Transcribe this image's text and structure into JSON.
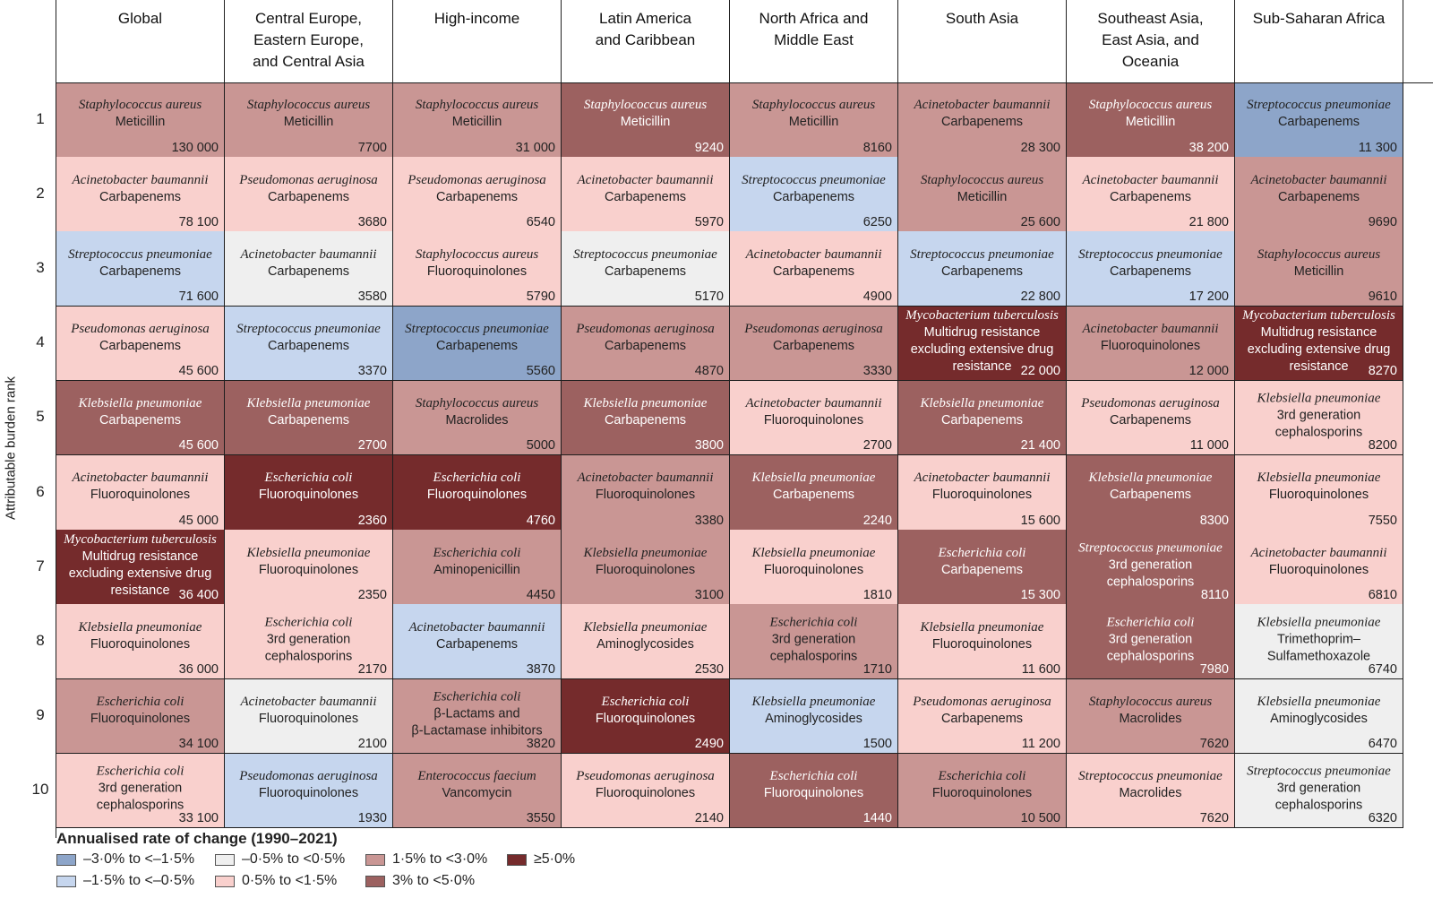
{
  "colors": {
    "c0": "#8da5c9",
    "c1": "#c6d6ee",
    "c2": "#efefef",
    "c3": "#f9d0cd",
    "c4": "#c99694",
    "c5": "#9c6160",
    "c6": "#752b2c"
  },
  "chart_data": {
    "type": "table",
    "ylabel": "Attributable burden rank",
    "columns": [
      "Global",
      "Central Europe, Eastern Europe, and Central Asia",
      "High-income",
      "Latin America and Caribbean",
      "North Africa and Middle East",
      "South Asia",
      "Southeast Asia, East Asia, and Oceania",
      "Sub-Saharan Africa"
    ],
    "column_lines": [
      [
        "Global"
      ],
      [
        "Central Europe,",
        "Eastern Europe,",
        "and Central Asia"
      ],
      [
        "High-income"
      ],
      [
        "Latin America",
        "and Caribbean"
      ],
      [
        "North Africa and",
        "Middle East"
      ],
      [
        "South Asia"
      ],
      [
        "Southeast Asia,",
        "East Asia, and",
        "Oceania"
      ],
      [
        "Sub-Saharan Africa"
      ]
    ],
    "ranks": [
      "1",
      "2",
      "3",
      "4",
      "5",
      "6",
      "7",
      "8",
      "9",
      "10"
    ],
    "legend_title": "Annualised rate of change (1990–2021)",
    "legend": [
      {
        "label": "–3·0% to <–1·5%",
        "cat": 0
      },
      {
        "label": "–1·5% to <–0·5%",
        "cat": 1
      },
      {
        "label": "–0·5% to <0·5%",
        "cat": 2
      },
      {
        "label": "0·5% to <1·5%",
        "cat": 3
      },
      {
        "label": "1·5% to <3·0%",
        "cat": 4
      },
      {
        "label": "3% to <5·0%",
        "cat": 5
      },
      {
        "label": "≥5·0%",
        "cat": 6
      }
    ],
    "rows": [
      [
        {
          "org": "Staphylococcus aureus",
          "drug": [
            "Meticillin"
          ],
          "value": "130 000",
          "cat": 4
        },
        {
          "org": "Staphylococcus aureus",
          "drug": [
            "Meticillin"
          ],
          "value": "7700",
          "cat": 4
        },
        {
          "org": "Staphylococcus aureus",
          "drug": [
            "Meticillin"
          ],
          "value": "31 000",
          "cat": 4
        },
        {
          "org": "Staphylococcus aureus",
          "drug": [
            "Meticillin"
          ],
          "value": "9240",
          "cat": 5
        },
        {
          "org": "Staphylococcus aureus",
          "drug": [
            "Meticillin"
          ],
          "value": "8160",
          "cat": 4
        },
        {
          "org": "Acinetobacter baumannii",
          "drug": [
            "Carbapenems"
          ],
          "value": "28 300",
          "cat": 4
        },
        {
          "org": "Staphylococcus aureus",
          "drug": [
            "Meticillin"
          ],
          "value": "38 200",
          "cat": 5
        },
        {
          "org": "Streptococcus pneumoniae",
          "drug": [
            "Carbapenems"
          ],
          "value": "11 300",
          "cat": 0
        }
      ],
      [
        {
          "org": "Acinetobacter baumannii",
          "drug": [
            "Carbapenems"
          ],
          "value": "78 100",
          "cat": 3
        },
        {
          "org": "Pseudomonas aeruginosa",
          "drug": [
            "Carbapenems"
          ],
          "value": "3680",
          "cat": 3
        },
        {
          "org": "Pseudomonas aeruginosa",
          "drug": [
            "Carbapenems"
          ],
          "value": "6540",
          "cat": 3
        },
        {
          "org": "Acinetobacter baumannii",
          "drug": [
            "Carbapenems"
          ],
          "value": "5970",
          "cat": 3
        },
        {
          "org": "Streptococcus pneumoniae",
          "drug": [
            "Carbapenems"
          ],
          "value": "6250",
          "cat": 1
        },
        {
          "org": "Staphylococcus aureus",
          "drug": [
            "Meticillin"
          ],
          "value": "25 600",
          "cat": 4
        },
        {
          "org": "Acinetobacter baumannii",
          "drug": [
            "Carbapenems"
          ],
          "value": "21 800",
          "cat": 3
        },
        {
          "org": "Acinetobacter baumannii",
          "drug": [
            "Carbapenems"
          ],
          "value": "9690",
          "cat": 4
        }
      ],
      [
        {
          "org": "Streptococcus pneumoniae",
          "drug": [
            "Carbapenems"
          ],
          "value": "71 600",
          "cat": 1
        },
        {
          "org": "Acinetobacter baumannii",
          "drug": [
            "Carbapenems"
          ],
          "value": "3580",
          "cat": 2
        },
        {
          "org": "Staphylococcus aureus",
          "drug": [
            "Fluoroquinolones"
          ],
          "value": "5790",
          "cat": 3
        },
        {
          "org": "Streptococcus pneumoniae",
          "drug": [
            "Carbapenems"
          ],
          "value": "5170",
          "cat": 2
        },
        {
          "org": "Acinetobacter baumannii",
          "drug": [
            "Carbapenems"
          ],
          "value": "4900",
          "cat": 3
        },
        {
          "org": "Streptococcus pneumoniae",
          "drug": [
            "Carbapenems"
          ],
          "value": "22 800",
          "cat": 1
        },
        {
          "org": "Streptococcus pneumoniae",
          "drug": [
            "Carbapenems"
          ],
          "value": "17 200",
          "cat": 1
        },
        {
          "org": "Staphylococcus aureus",
          "drug": [
            "Meticillin"
          ],
          "value": "9610",
          "cat": 4
        }
      ],
      [
        {
          "org": "Pseudomonas aeruginosa",
          "drug": [
            "Carbapenems"
          ],
          "value": "45 600",
          "cat": 3
        },
        {
          "org": "Streptococcus pneumoniae",
          "drug": [
            "Carbapenems"
          ],
          "value": "3370",
          "cat": 1
        },
        {
          "org": "Streptococcus pneumoniae",
          "drug": [
            "Carbapenems"
          ],
          "value": "5560",
          "cat": 0
        },
        {
          "org": "Pseudomonas aeruginosa",
          "drug": [
            "Carbapenems"
          ],
          "value": "4870",
          "cat": 4
        },
        {
          "org": "Pseudomonas aeruginosa",
          "drug": [
            "Carbapenems"
          ],
          "value": "3330",
          "cat": 4
        },
        {
          "org": "Mycobacterium tuberculosis",
          "drug": [
            "Multidrug resistance",
            "excluding extensive drug",
            "resistance"
          ],
          "value": "22 000",
          "cat": 6
        },
        {
          "org": "Acinetobacter baumannii",
          "drug": [
            "Fluoroquinolones"
          ],
          "value": "12 000",
          "cat": 4
        },
        {
          "org": "Mycobacterium tuberculosis",
          "drug": [
            "Multidrug resistance",
            "excluding extensive drug",
            "resistance"
          ],
          "value": "8270",
          "cat": 6
        }
      ],
      [
        {
          "org": "Klebsiella pneumoniae",
          "drug": [
            "Carbapenems"
          ],
          "value": "45 600",
          "cat": 5
        },
        {
          "org": "Klebsiella pneumoniae",
          "drug": [
            "Carbapenems"
          ],
          "value": "2700",
          "cat": 5
        },
        {
          "org": "Staphylococcus aureus",
          "drug": [
            "Macrolides"
          ],
          "value": "5000",
          "cat": 4
        },
        {
          "org": "Klebsiella pneumoniae",
          "drug": [
            "Carbapenems"
          ],
          "value": "3800",
          "cat": 5
        },
        {
          "org": "Acinetobacter baumannii",
          "drug": [
            "Fluoroquinolones"
          ],
          "value": "2700",
          "cat": 3
        },
        {
          "org": "Klebsiella pneumoniae",
          "drug": [
            "Carbapenems"
          ],
          "value": "21 400",
          "cat": 5
        },
        {
          "org": "Pseudomonas aeruginosa",
          "drug": [
            "Carbapenems"
          ],
          "value": "11 000",
          "cat": 3
        },
        {
          "org": "Klebsiella pneumoniae",
          "drug": [
            "3rd generation",
            "cephalosporins"
          ],
          "value": "8200",
          "cat": 3
        }
      ],
      [
        {
          "org": "Acinetobacter baumannii",
          "drug": [
            "Fluoroquinolones"
          ],
          "value": "45 000",
          "cat": 3
        },
        {
          "org": "Escherichia coli",
          "drug": [
            "Fluoroquinolones"
          ],
          "value": "2360",
          "cat": 6
        },
        {
          "org": "Escherichia coli",
          "drug": [
            "Fluoroquinolones"
          ],
          "value": "4760",
          "cat": 6
        },
        {
          "org": "Acinetobacter baumannii",
          "drug": [
            "Fluoroquinolones"
          ],
          "value": "3380",
          "cat": 4
        },
        {
          "org": "Klebsiella pneumoniae",
          "drug": [
            "Carbapenems"
          ],
          "value": "2240",
          "cat": 5
        },
        {
          "org": "Acinetobacter baumannii",
          "drug": [
            "Fluoroquinolones"
          ],
          "value": "15 600",
          "cat": 3
        },
        {
          "org": "Klebsiella pneumoniae",
          "drug": [
            "Carbapenems"
          ],
          "value": "8300",
          "cat": 5
        },
        {
          "org": "Klebsiella pneumoniae",
          "drug": [
            "Fluoroquinolones"
          ],
          "value": "7550",
          "cat": 3
        }
      ],
      [
        {
          "org": "Mycobacterium tuberculosis",
          "drug": [
            "Multidrug resistance",
            "excluding extensive drug",
            "resistance"
          ],
          "value": "36 400",
          "cat": 6
        },
        {
          "org": "Klebsiella pneumoniae",
          "drug": [
            "Fluoroquinolones"
          ],
          "value": "2350",
          "cat": 3
        },
        {
          "org": "Escherichia coli",
          "drug": [
            "Aminopenicillin"
          ],
          "value": "4450",
          "cat": 4
        },
        {
          "org": "Klebsiella pneumoniae",
          "drug": [
            "Fluoroquinolones"
          ],
          "value": "3100",
          "cat": 4
        },
        {
          "org": "Klebsiella pneumoniae",
          "drug": [
            "Fluoroquinolones"
          ],
          "value": "1810",
          "cat": 3
        },
        {
          "org": "Escherichia coli",
          "drug": [
            "Carbapenems"
          ],
          "value": "15 300",
          "cat": 5
        },
        {
          "org": "Streptococcus pneumoniae",
          "drug": [
            "3rd generation",
            "cephalosporins"
          ],
          "value": "8110",
          "cat": 5
        },
        {
          "org": "Acinetobacter baumannii",
          "drug": [
            "Fluoroquinolones"
          ],
          "value": "6810",
          "cat": 3
        }
      ],
      [
        {
          "org": "Klebsiella pneumoniae",
          "drug": [
            "Fluoroquinolones"
          ],
          "value": "36 000",
          "cat": 3
        },
        {
          "org": "Escherichia coli",
          "drug": [
            "3rd generation",
            "cephalosporins"
          ],
          "value": "2170",
          "cat": 3
        },
        {
          "org": "Acinetobacter baumannii",
          "drug": [
            "Carbapenems"
          ],
          "value": "3870",
          "cat": 1
        },
        {
          "org": "Klebsiella pneumoniae",
          "drug": [
            "Aminoglycosides"
          ],
          "value": "2530",
          "cat": 3
        },
        {
          "org": "Escherichia coli",
          "drug": [
            "3rd generation",
            "cephalosporins"
          ],
          "value": "1710",
          "cat": 4
        },
        {
          "org": "Klebsiella pneumoniae",
          "drug": [
            "Fluoroquinolones"
          ],
          "value": "11 600",
          "cat": 3
        },
        {
          "org": "Escherichia coli",
          "drug": [
            "3rd generation",
            "cephalosporins"
          ],
          "value": "7980",
          "cat": 5
        },
        {
          "org": "Klebsiella pneumoniae",
          "drug": [
            "Trimethoprim–",
            "Sulfamethoxazole"
          ],
          "value": "6740",
          "cat": 2
        }
      ],
      [
        {
          "org": "Escherichia coli",
          "drug": [
            "Fluoroquinolones"
          ],
          "value": "34 100",
          "cat": 4
        },
        {
          "org": "Acinetobacter baumannii",
          "drug": [
            "Fluoroquinolones"
          ],
          "value": "2100",
          "cat": 2
        },
        {
          "org": "Escherichia coli",
          "drug": [
            "β-Lactams and",
            "β-Lactamase inhibitors"
          ],
          "value": "3820",
          "cat": 4
        },
        {
          "org": "Escherichia coli",
          "drug": [
            "Fluoroquinolones"
          ],
          "value": "2490",
          "cat": 6
        },
        {
          "org": "Klebsiella pneumoniae",
          "drug": [
            "Aminoglycosides"
          ],
          "value": "1500",
          "cat": 1
        },
        {
          "org": "Pseudomonas aeruginosa",
          "drug": [
            "Carbapenems"
          ],
          "value": "11 200",
          "cat": 3
        },
        {
          "org": "Staphylococcus aureus",
          "drug": [
            "Macrolides"
          ],
          "value": "7620",
          "cat": 4
        },
        {
          "org": "Klebsiella pneumoniae",
          "drug": [
            "Aminoglycosides"
          ],
          "value": "6470",
          "cat": 2
        }
      ],
      [
        {
          "org": "Escherichia coli",
          "drug": [
            "3rd generation",
            "cephalosporins"
          ],
          "value": "33 100",
          "cat": 3
        },
        {
          "org": "Pseudomonas aeruginosa",
          "drug": [
            "Fluoroquinolones"
          ],
          "value": "1930",
          "cat": 1
        },
        {
          "org": "Enterococcus faecium",
          "drug": [
            "Vancomycin"
          ],
          "value": "3550",
          "cat": 4
        },
        {
          "org": "Pseudomonas aeruginosa",
          "drug": [
            "Fluoroquinolones"
          ],
          "value": "2140",
          "cat": 3
        },
        {
          "org": "Escherichia coli",
          "drug": [
            "Fluoroquinolones"
          ],
          "value": "1440",
          "cat": 5
        },
        {
          "org": "Escherichia coli",
          "drug": [
            "Fluoroquinolones"
          ],
          "value": "10 500",
          "cat": 4
        },
        {
          "org": "Streptococcus pneumoniae",
          "drug": [
            "Macrolides"
          ],
          "value": "7620",
          "cat": 3
        },
        {
          "org": "Streptococcus pneumoniae",
          "drug": [
            "3rd generation",
            "cephalosporins"
          ],
          "value": "6320",
          "cat": 2
        }
      ]
    ]
  }
}
